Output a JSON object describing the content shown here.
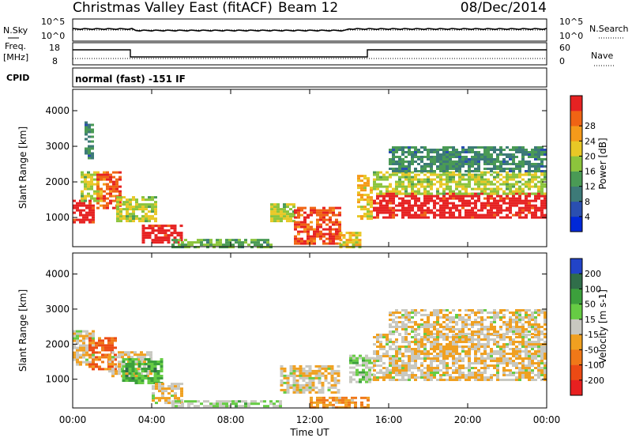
{
  "header": {
    "title": "Christmas Valley East (fitACF)",
    "beam": "Beam 12",
    "date": "08/Dec/2014"
  },
  "panel_labels": {
    "nsky": "N.Sky",
    "nsearch": "N.Search",
    "freq_line1": "Freq.",
    "freq_line2": "[MHz]",
    "nave": "Nave",
    "cpid": "CPID",
    "cpid_value": "normal (fast) -151 IF"
  },
  "noise_axis": {
    "left_ticks": [
      "10^5",
      "10^0"
    ],
    "right_ticks": [
      "10^5",
      "10^0"
    ]
  },
  "freq_axis": {
    "left_ticks": [
      "18",
      "8"
    ],
    "right_ticks": [
      "60",
      "0"
    ]
  },
  "chart_data": [
    {
      "type": "heatmap",
      "name": "power",
      "ylabel": "Slant Range [km]",
      "yticks": [
        1000,
        2000,
        3000,
        4000
      ],
      "ylim": [
        180,
        4600
      ],
      "xlim": [
        0,
        24
      ],
      "xticks": [
        "00:00",
        "04:00",
        "08:00",
        "12:00",
        "16:00",
        "20:00",
        "00:00"
      ],
      "colorbar": {
        "label": "Power [dB]",
        "ticks": [
          "4",
          "8",
          "12",
          "16",
          "20",
          "24",
          "28"
        ],
        "colors": [
          "#0028d8",
          "#2a4fb0",
          "#3d7a78",
          "#4a9a55",
          "#8cc43c",
          "#e8c826",
          "#f59a1a",
          "#f06414",
          "#e62222"
        ]
      },
      "regions": [
        {
          "t0": 0.0,
          "t1": 1.0,
          "r0": 900,
          "r1": 1500,
          "level": 8
        },
        {
          "t0": 0.4,
          "t1": 1.4,
          "r0": 1500,
          "r1": 2300,
          "level": 4
        },
        {
          "t0": 0.6,
          "t1": 1.0,
          "r0": 2700,
          "r1": 3700,
          "level": 2
        },
        {
          "t0": 1.2,
          "t1": 2.4,
          "r0": 1300,
          "r1": 2300,
          "level": 7
        },
        {
          "t0": 2.2,
          "t1": 4.2,
          "r0": 900,
          "r1": 1600,
          "level": 4
        },
        {
          "t0": 3.5,
          "t1": 5.5,
          "r0": 300,
          "r1": 800,
          "level": 8
        },
        {
          "t0": 5.0,
          "t1": 10.0,
          "r0": 200,
          "r1": 400,
          "level": 3
        },
        {
          "t0": 10.0,
          "t1": 11.2,
          "r0": 900,
          "r1": 1400,
          "level": 4
        },
        {
          "t0": 11.2,
          "t1": 13.5,
          "r0": 300,
          "r1": 1300,
          "level": 7
        },
        {
          "t0": 13.5,
          "t1": 14.6,
          "r0": 200,
          "r1": 600,
          "level": 5
        },
        {
          "t0": 14.4,
          "t1": 15.2,
          "r0": 1000,
          "r1": 2200,
          "level": 5
        },
        {
          "t0": 15.2,
          "t1": 23.9,
          "r0": 1000,
          "r1": 1700,
          "level": 8
        },
        {
          "t0": 15.2,
          "t1": 23.9,
          "r0": 1700,
          "r1": 2300,
          "level": 4
        },
        {
          "t0": 16.0,
          "t1": 23.9,
          "r0": 2300,
          "r1": 3000,
          "level": 2
        }
      ]
    },
    {
      "type": "heatmap",
      "name": "velocity",
      "ylabel": "Slant Range [km]",
      "yticks": [
        1000,
        2000,
        3000,
        4000
      ],
      "ylim": [
        180,
        4600
      ],
      "xlim": [
        0,
        24
      ],
      "xlabel": "Time UT",
      "xticks": [
        "00:00",
        "04:00",
        "08:00",
        "12:00",
        "16:00",
        "20:00",
        "00:00"
      ],
      "colorbar": {
        "label": "Velocity [m s-1]",
        "ticks": [
          "200",
          "100",
          "50",
          "15",
          "-15",
          "-50",
          "-100",
          "-200"
        ],
        "colors": [
          "#2244c8",
          "#306e4a",
          "#3ca03c",
          "#66cc44",
          "#c8c8c0",
          "#f0a020",
          "#f07818",
          "#ec4a14",
          "#e82020"
        ]
      },
      "regions": [
        {
          "t0": 0.0,
          "t1": 1.0,
          "r0": 1400,
          "r1": 2400,
          "level": 4
        },
        {
          "t0": 0.8,
          "t1": 2.2,
          "r0": 1300,
          "r1": 2200,
          "level": 6
        },
        {
          "t0": 1.8,
          "t1": 4.0,
          "r0": 1100,
          "r1": 1800,
          "level": 4
        },
        {
          "t0": 2.5,
          "t1": 4.5,
          "r0": 900,
          "r1": 1600,
          "level": 2
        },
        {
          "t0": 4.0,
          "t1": 5.5,
          "r0": 300,
          "r1": 900,
          "level": 4
        },
        {
          "t0": 5.0,
          "t1": 10.5,
          "r0": 200,
          "r1": 400,
          "level": 3
        },
        {
          "t0": 10.5,
          "t1": 13.5,
          "r0": 600,
          "r1": 1400,
          "level": 4
        },
        {
          "t0": 12.0,
          "t1": 15.0,
          "r0": 200,
          "r1": 500,
          "level": 5
        },
        {
          "t0": 14.0,
          "t1": 15.2,
          "r0": 900,
          "r1": 1700,
          "level": 3
        },
        {
          "t0": 15.2,
          "t1": 23.9,
          "r0": 1000,
          "r1": 2300,
          "level": 4
        },
        {
          "t0": 16.0,
          "t1": 23.9,
          "r0": 2300,
          "r1": 3000,
          "level": 4
        }
      ]
    }
  ]
}
